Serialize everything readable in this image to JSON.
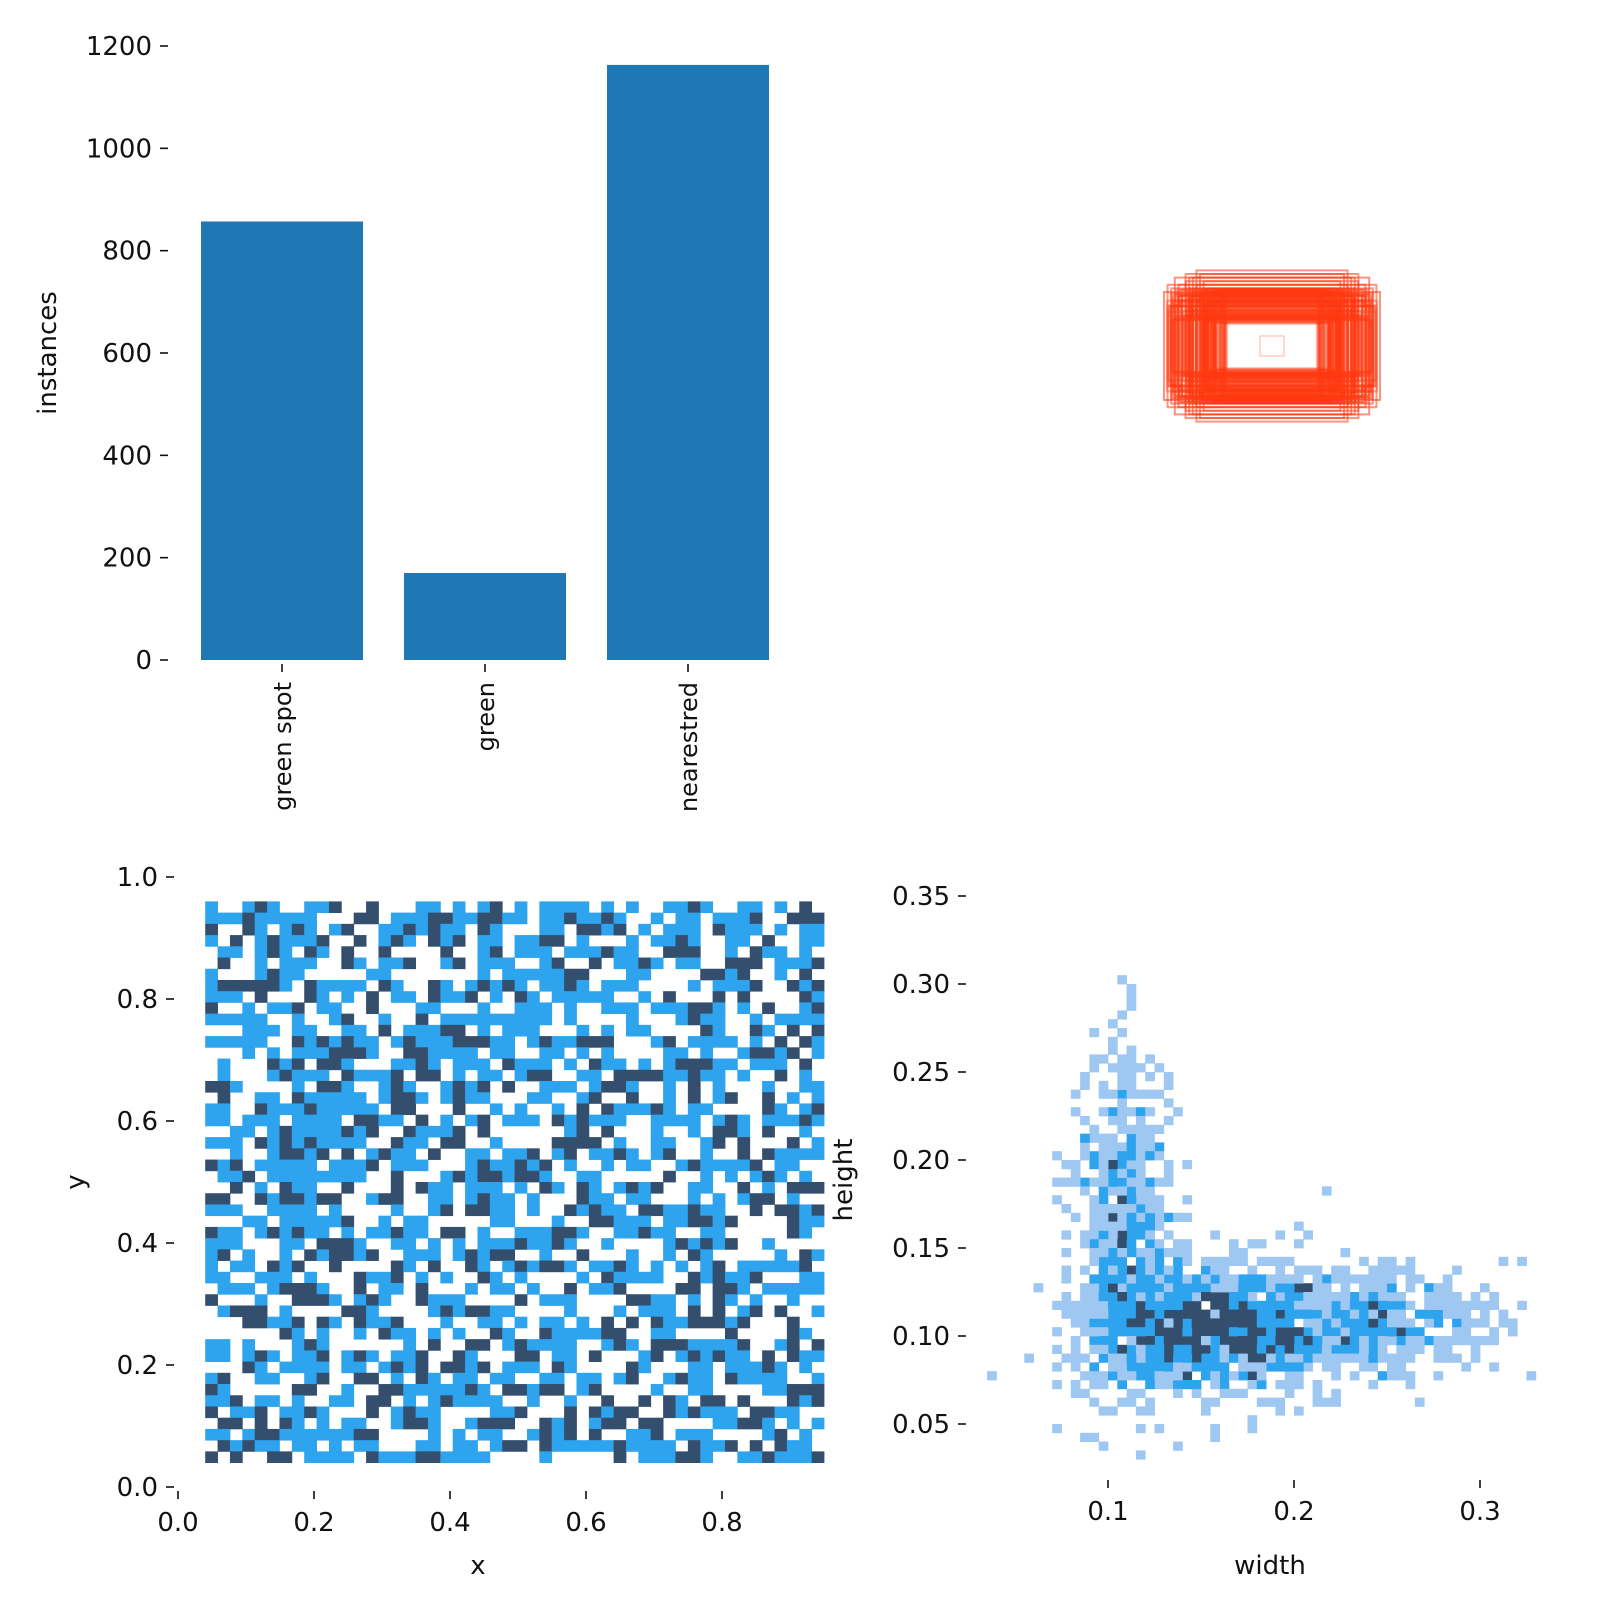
{
  "chart_data": [
    {
      "type": "bar",
      "ylabel": "instances",
      "xlabel": "",
      "categories": [
        "green spot",
        "green",
        "nearestred"
      ],
      "values": [
        857,
        170,
        1163
      ],
      "ylim": [
        0,
        1200
      ],
      "yticks": [
        "0",
        "200",
        "400",
        "600",
        "800",
        "1000",
        "1200"
      ],
      "colors": {
        "bar": "#1f77b4"
      },
      "grid": false
    },
    {
      "type": "other",
      "description_in_pixels": false,
      "content": "overlaid bounding-box outlines centred at x=0.5, y=0.5",
      "colors": {
        "stroke": "#ff3a12"
      },
      "box_sizes": [
        [
          0.28,
          0.16
        ],
        [
          0.26,
          0.17
        ],
        [
          0.24,
          0.18
        ],
        [
          0.22,
          0.19
        ],
        [
          0.2,
          0.2
        ],
        [
          0.3,
          0.15
        ],
        [
          0.25,
          0.14
        ],
        [
          0.23,
          0.16
        ],
        [
          0.21,
          0.17
        ],
        [
          0.19,
          0.18
        ],
        [
          0.27,
          0.19
        ],
        [
          0.22,
          0.15
        ],
        [
          0.18,
          0.16
        ],
        [
          0.29,
          0.17
        ],
        [
          0.24,
          0.2
        ],
        [
          0.2,
          0.14
        ],
        [
          0.17,
          0.15
        ],
        [
          0.26,
          0.14
        ],
        [
          0.23,
          0.19
        ],
        [
          0.21,
          0.21
        ]
      ]
    },
    {
      "type": "heatmap",
      "xlabel": "x",
      "ylabel": "y",
      "xlim": [
        0.0,
        1.0
      ],
      "ylim": [
        0.0,
        1.0
      ],
      "xticks": [
        "0.0",
        "0.2",
        "0.4",
        "0.6",
        "0.8"
      ],
      "yticks": [
        "0.0",
        "0.2",
        "0.4",
        "0.6",
        "0.8",
        "1.0"
      ],
      "data_extent": {
        "x": [
          0.04,
          0.95
        ],
        "y": [
          0.04,
          0.96
        ]
      },
      "colors": {
        "low": "#2ea3ee",
        "high": "#344f6e"
      },
      "grid": false
    },
    {
      "type": "heatmap",
      "xlabel": "width",
      "ylabel": "height",
      "xlim": [
        0.02,
        0.35
      ],
      "ylim": [
        0.02,
        0.36
      ],
      "xticks": [
        "0.1",
        "0.2",
        "0.3"
      ],
      "yticks": [
        "0.05",
        "0.10",
        "0.15",
        "0.20",
        "0.25",
        "0.30",
        "0.35"
      ],
      "clusters": [
        {
          "width": 0.155,
          "height": 0.105,
          "spread_w": 0.035,
          "spread_h": 0.018,
          "weight": 0.55
        },
        {
          "width": 0.108,
          "height": 0.17,
          "spread_w": 0.013,
          "spread_h": 0.05,
          "weight": 0.25
        },
        {
          "width": 0.24,
          "height": 0.11,
          "spread_w": 0.035,
          "spread_h": 0.015,
          "weight": 0.2
        }
      ],
      "colors": {
        "low": "#9ec7f2",
        "mid": "#2ea3ee",
        "high": "#344f6e"
      },
      "grid": false
    }
  ]
}
